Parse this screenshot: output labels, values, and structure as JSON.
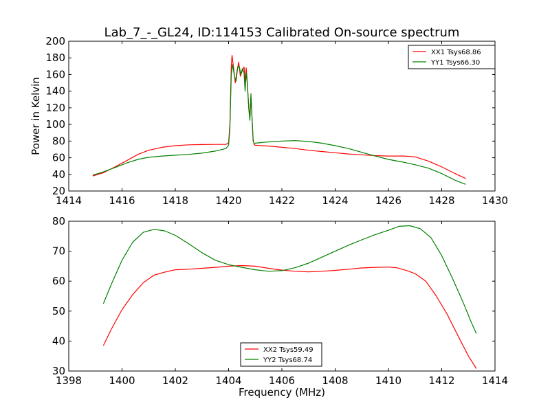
{
  "figure": {
    "title": "Lab_7_-_GL24, ID:114153 Calibrated On-source spectrum"
  },
  "chart_data": [
    {
      "type": "line",
      "title": "Lab_7_-_GL24, ID:114153 Calibrated On-source spectrum",
      "xlabel": "",
      "ylabel": "Power in Kelvin",
      "xlim": [
        1414,
        1430
      ],
      "ylim": [
        20,
        200
      ],
      "x_ticks": [
        1414,
        1416,
        1418,
        1420,
        1422,
        1424,
        1426,
        1428,
        1430
      ],
      "y_ticks": [
        20,
        40,
        60,
        80,
        100,
        120,
        140,
        160,
        180,
        200
      ],
      "grid": false,
      "legend_position": "top-right",
      "series": [
        {
          "name": "XX1 Tsys68.86",
          "color": "#ff0000",
          "points": [
            [
              1414.9,
              38
            ],
            [
              1415.3,
              42
            ],
            [
              1415.8,
              50
            ],
            [
              1416.2,
              57
            ],
            [
              1416.6,
              64
            ],
            [
              1417.0,
              69
            ],
            [
              1417.5,
              72.5
            ],
            [
              1418.0,
              74.5
            ],
            [
              1418.5,
              75.5
            ],
            [
              1419.0,
              75.8
            ],
            [
              1419.5,
              76
            ],
            [
              1419.9,
              76
            ],
            [
              1420.0,
              78
            ],
            [
              1420.05,
              100
            ],
            [
              1420.1,
              170
            ],
            [
              1420.13,
              183
            ],
            [
              1420.18,
              170
            ],
            [
              1420.25,
              150
            ],
            [
              1420.32,
              165
            ],
            [
              1420.38,
              175
            ],
            [
              1420.44,
              158
            ],
            [
              1420.52,
              165
            ],
            [
              1420.58,
              169
            ],
            [
              1420.62,
              150
            ],
            [
              1420.66,
              168
            ],
            [
              1420.7,
              152
            ],
            [
              1420.76,
              120
            ],
            [
              1420.8,
              110
            ],
            [
              1420.84,
              133
            ],
            [
              1420.88,
              108
            ],
            [
              1420.92,
              82
            ],
            [
              1420.96,
              76
            ],
            [
              1421.0,
              75
            ],
            [
              1421.5,
              74
            ],
            [
              1422.0,
              72.5
            ],
            [
              1422.5,
              71
            ],
            [
              1423.0,
              69
            ],
            [
              1423.5,
              67.5
            ],
            [
              1424.0,
              66
            ],
            [
              1424.5,
              64.5
            ],
            [
              1425.0,
              63.5
            ],
            [
              1425.5,
              62.5
            ],
            [
              1426.0,
              62
            ],
            [
              1426.6,
              62
            ],
            [
              1427.0,
              61
            ],
            [
              1427.5,
              56
            ],
            [
              1428.0,
              49
            ],
            [
              1428.5,
              41
            ],
            [
              1428.9,
              35
            ]
          ]
        },
        {
          "name": "YY1 Tsys66.30",
          "color": "#008000",
          "points": [
            [
              1414.9,
              39
            ],
            [
              1415.3,
              43
            ],
            [
              1415.8,
              49
            ],
            [
              1416.2,
              54
            ],
            [
              1416.6,
              58
            ],
            [
              1417.0,
              60.5
            ],
            [
              1417.5,
              62
            ],
            [
              1418.0,
              63
            ],
            [
              1418.5,
              64
            ],
            [
              1419.0,
              65.5
            ],
            [
              1419.5,
              68
            ],
            [
              1419.9,
              71
            ],
            [
              1420.0,
              75
            ],
            [
              1420.05,
              95
            ],
            [
              1420.1,
              160
            ],
            [
              1420.15,
              172
            ],
            [
              1420.22,
              158
            ],
            [
              1420.28,
              152
            ],
            [
              1420.34,
              168
            ],
            [
              1420.4,
              170
            ],
            [
              1420.46,
              160
            ],
            [
              1420.52,
              167
            ],
            [
              1420.58,
              162
            ],
            [
              1420.62,
              140
            ],
            [
              1420.66,
              162
            ],
            [
              1420.7,
              150
            ],
            [
              1420.76,
              118
            ],
            [
              1420.8,
              105
            ],
            [
              1420.84,
              137
            ],
            [
              1420.88,
              108
            ],
            [
              1420.92,
              80
            ],
            [
              1420.96,
              77
            ],
            [
              1421.0,
              77.5
            ],
            [
              1421.5,
              79
            ],
            [
              1422.0,
              80
            ],
            [
              1422.5,
              80.5
            ],
            [
              1423.0,
              79.5
            ],
            [
              1423.5,
              77.5
            ],
            [
              1424.0,
              74.5
            ],
            [
              1424.5,
              71
            ],
            [
              1425.0,
              66.5
            ],
            [
              1425.5,
              62
            ],
            [
              1426.0,
              58
            ],
            [
              1426.5,
              55
            ],
            [
              1427.0,
              51.5
            ],
            [
              1427.5,
              47.5
            ],
            [
              1428.0,
              41
            ],
            [
              1428.5,
              33
            ],
            [
              1428.9,
              28
            ]
          ]
        }
      ]
    },
    {
      "type": "line",
      "title": "",
      "xlabel": "Frequency (MHz)",
      "ylabel": "",
      "xlim": [
        1398,
        1414
      ],
      "ylim": [
        30,
        80
      ],
      "x_ticks": [
        1398,
        1400,
        1402,
        1404,
        1406,
        1408,
        1410,
        1412,
        1414
      ],
      "y_ticks": [
        30,
        40,
        50,
        60,
        70,
        80
      ],
      "grid": false,
      "legend_position": "bottom-center",
      "series": [
        {
          "name": "XX2 Tsys59.49",
          "color": "#ff0000",
          "points": [
            [
              1399.3,
              38.5
            ],
            [
              1399.6,
              44
            ],
            [
              1400.0,
              50.5
            ],
            [
              1400.4,
              55.5
            ],
            [
              1400.8,
              59.5
            ],
            [
              1401.2,
              62
            ],
            [
              1401.6,
              63
            ],
            [
              1402.0,
              63.8
            ],
            [
              1402.5,
              64
            ],
            [
              1403.0,
              64.3
            ],
            [
              1403.5,
              64.6
            ],
            [
              1404.0,
              65
            ],
            [
              1404.5,
              65.2
            ],
            [
              1405.0,
              65
            ],
            [
              1405.5,
              64.3
            ],
            [
              1406.0,
              63.7
            ],
            [
              1406.5,
              63.3
            ],
            [
              1407.0,
              63.1
            ],
            [
              1407.5,
              63.3
            ],
            [
              1408.0,
              63.6
            ],
            [
              1408.5,
              64
            ],
            [
              1409.0,
              64.4
            ],
            [
              1409.5,
              64.6
            ],
            [
              1410.0,
              64.7
            ],
            [
              1410.3,
              64.5
            ],
            [
              1410.7,
              63.5
            ],
            [
              1411.0,
              62.5
            ],
            [
              1411.4,
              60
            ],
            [
              1411.8,
              55
            ],
            [
              1412.2,
              49
            ],
            [
              1412.6,
              42
            ],
            [
              1413.0,
              35
            ],
            [
              1413.3,
              30.8
            ]
          ]
        },
        {
          "name": "YY2 Tsys68.74",
          "color": "#008000",
          "points": [
            [
              1399.3,
              52.5
            ],
            [
              1399.6,
              59
            ],
            [
              1400.0,
              67
            ],
            [
              1400.4,
              73
            ],
            [
              1400.8,
              76.3
            ],
            [
              1401.2,
              77.3
            ],
            [
              1401.6,
              76.8
            ],
            [
              1402.0,
              75.3
            ],
            [
              1402.5,
              72.5
            ],
            [
              1403.0,
              69.5
            ],
            [
              1403.5,
              67
            ],
            [
              1404.0,
              65.5
            ],
            [
              1404.5,
              64.6
            ],
            [
              1405.0,
              63.8
            ],
            [
              1405.5,
              63.3
            ],
            [
              1406.0,
              63.5
            ],
            [
              1406.5,
              64.5
            ],
            [
              1407.0,
              66
            ],
            [
              1407.5,
              68
            ],
            [
              1408.0,
              70
            ],
            [
              1408.5,
              72
            ],
            [
              1409.0,
              73.8
            ],
            [
              1409.5,
              75.5
            ],
            [
              1410.0,
              77
            ],
            [
              1410.4,
              78.3
            ],
            [
              1410.8,
              78.5
            ],
            [
              1411.2,
              77.5
            ],
            [
              1411.6,
              74.5
            ],
            [
              1412.0,
              68.5
            ],
            [
              1412.4,
              61
            ],
            [
              1412.8,
              53
            ],
            [
              1413.1,
              46.5
            ],
            [
              1413.3,
              42.5
            ]
          ]
        }
      ]
    }
  ]
}
